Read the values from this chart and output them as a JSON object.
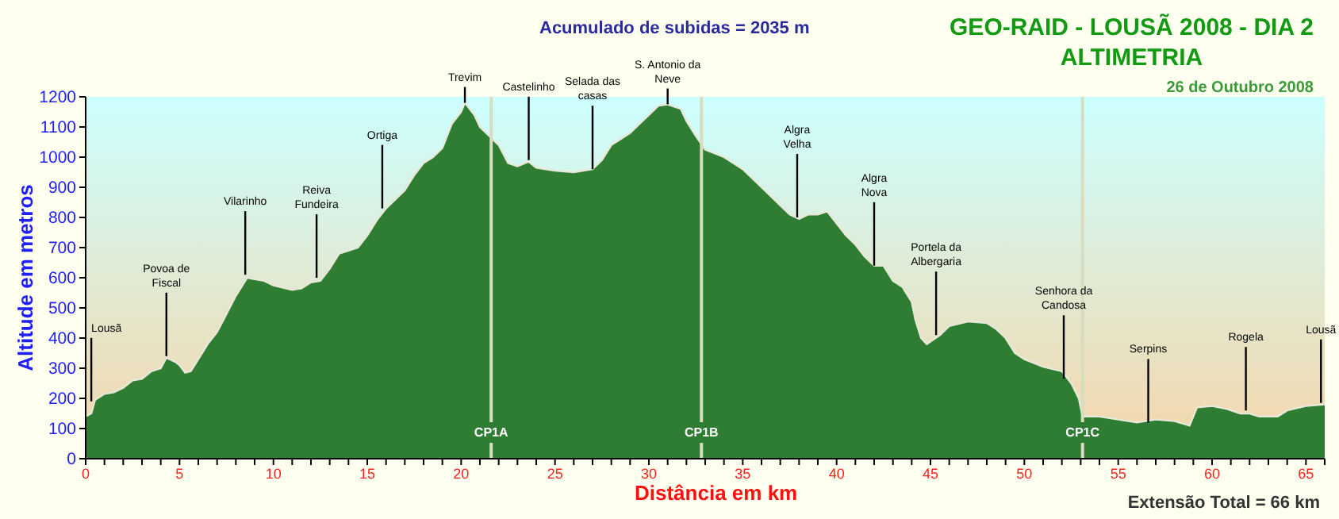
{
  "chart_data": {
    "type": "area",
    "title": "GEO-RAID - LOUSÃ 2008 - DIA 2\nALTIMETRIA",
    "subtitle": "26 de Outubro 2008",
    "xlabel": "Distância em km",
    "ylabel": "Altitude em metros",
    "x": [
      0,
      0.3,
      0.5,
      1,
      1.5,
      2,
      2.5,
      3,
      3.5,
      4,
      4.3,
      4.8,
      5,
      5.3,
      5.6,
      6,
      6.5,
      7,
      7.5,
      8,
      8.6,
      9,
      9.5,
      10,
      11,
      11.5,
      12,
      12.5,
      13,
      13.5,
      14,
      14.5,
      15,
      15.5,
      16,
      17,
      17.5,
      18,
      18.5,
      19,
      19.5,
      20,
      20.2,
      20.7,
      21,
      21.5,
      22,
      22.5,
      23,
      23.6,
      24,
      25,
      26,
      27,
      27.5,
      28,
      28.5,
      29,
      29.5,
      30,
      30.5,
      31,
      31.7,
      32,
      32.5,
      33,
      34,
      35,
      36,
      37,
      37.5,
      38,
      38.5,
      39,
      39.5,
      40,
      40.5,
      41,
      41.5,
      42,
      42.5,
      43,
      43.5,
      44,
      44.2,
      44.5,
      44.8,
      45.5,
      46,
      47,
      48,
      48.5,
      49,
      49.5,
      50,
      51,
      52,
      52.5,
      52.9,
      53.1,
      54,
      55,
      56,
      57,
      58,
      58.8,
      59.2,
      60,
      60.8,
      61.5,
      62,
      62.5,
      63.5,
      64,
      65,
      66
    ],
    "series": [
      {
        "color": "#2e7d32",
        "values": [
          140,
          150,
          195,
          215,
          220,
          235,
          260,
          265,
          290,
          300,
          335,
          320,
          310,
          285,
          290,
          330,
          380,
          420,
          480,
          540,
          600,
          595,
          590,
          575,
          560,
          565,
          585,
          590,
          630,
          680,
          690,
          700,
          740,
          790,
          830,
          890,
          940,
          980,
          1000,
          1030,
          1110,
          1150,
          1180,
          1140,
          1100,
          1070,
          1040,
          980,
          970,
          985,
          965,
          955,
          950,
          960,
          990,
          1040,
          1060,
          1080,
          1110,
          1140,
          1170,
          1175,
          1160,
          1120,
          1070,
          1025,
          1000,
          960,
          900,
          840,
          810,
          795,
          810,
          810,
          820,
          780,
          740,
          710,
          670,
          640,
          640,
          590,
          570,
          520,
          460,
          400,
          380,
          410,
          440,
          455,
          450,
          430,
          400,
          350,
          330,
          305,
          290,
          250,
          200,
          140,
          140,
          130,
          120,
          130,
          125,
          110,
          170,
          175,
          165,
          150,
          150,
          140,
          140,
          160,
          175,
          180
        ]
      }
    ],
    "xlim": [
      0,
      66
    ],
    "xticks": [
      0,
      {
        "value": 1,
        "label": null
      },
      {
        "value": 2,
        "label": null
      },
      {
        "value": 3,
        "label": null
      },
      {
        "value": 4,
        "label": null
      },
      5,
      {
        "value": 6,
        "label": null
      },
      {
        "value": 7,
        "label": null
      },
      {
        "value": 8,
        "label": null
      },
      {
        "value": 9,
        "label": null
      },
      10,
      {
        "value": 11,
        "label": null
      },
      {
        "value": 12,
        "label": null
      },
      {
        "value": 13,
        "label": null
      },
      {
        "value": 14,
        "label": null
      },
      15,
      {
        "value": 16,
        "label": null
      },
      {
        "value": 17,
        "label": null
      },
      {
        "value": 18,
        "label": null
      },
      {
        "value": 19,
        "label": null
      },
      20,
      {
        "value": 21,
        "label": null
      },
      {
        "value": 22,
        "label": null
      },
      {
        "value": 23,
        "label": null
      },
      {
        "value": 24,
        "label": null
      },
      25,
      {
        "value": 26,
        "label": null
      },
      {
        "value": 27,
        "label": null
      },
      {
        "value": 28,
        "label": null
      },
      {
        "value": 29,
        "label": null
      },
      30,
      {
        "value": 31,
        "label": null
      },
      {
        "value": 32,
        "label": null
      },
      {
        "value": 33,
        "label": null
      },
      {
        "value": 34,
        "label": null
      },
      35,
      {
        "value": 36,
        "label": null
      },
      {
        "value": 37,
        "label": null
      },
      {
        "value": 38,
        "label": null
      },
      {
        "value": 39,
        "label": null
      },
      40,
      {
        "value": 41,
        "label": null
      },
      {
        "value": 42,
        "label": null
      },
      {
        "value": 43,
        "label": null
      },
      {
        "value": 44,
        "label": null
      },
      45,
      {
        "value": 46,
        "label": null
      },
      {
        "value": 47,
        "label": null
      },
      {
        "value": 48,
        "label": null
      },
      {
        "value": 49,
        "label": null
      },
      50,
      {
        "value": 51,
        "label": null
      },
      {
        "value": 52,
        "label": null
      },
      {
        "value": 53,
        "label": null
      },
      {
        "value": 54,
        "label": null
      },
      55,
      {
        "value": 56,
        "label": null
      },
      {
        "value": 57,
        "label": null
      },
      {
        "value": 58,
        "label": null
      },
      {
        "value": 59,
        "label": null
      },
      60,
      {
        "value": 61,
        "label": null
      },
      {
        "value": 62,
        "label": null
      },
      {
        "value": 63,
        "label": null
      },
      {
        "value": 64,
        "label": null
      },
      65,
      {
        "value": 66,
        "label": null
      }
    ],
    "ylim": [
      0,
      1200
    ],
    "yticks": [
      0,
      100,
      200,
      300,
      400,
      500,
      600,
      700,
      800,
      900,
      1000,
      1100,
      1200
    ],
    "ref_lines": [
      {
        "axis": "x",
        "value": 21.6,
        "label": "CP1A",
        "color": "#d8dcc0"
      },
      {
        "axis": "x",
        "value": 32.8,
        "label": "CP1B",
        "color": "#d8dcc0"
      },
      {
        "axis": "x",
        "value": 53.1,
        "label": "CP1C",
        "color": "#d8dcc0"
      }
    ],
    "annotations": [
      "Acumulado de subidas = 2035 m",
      "Extensão Total = 66 km",
      {
        "text": "Lousã",
        "x": 0.3,
        "y": 190
      },
      {
        "text": "Povoa de\nFiscal",
        "x": 4.3,
        "y": 340
      },
      {
        "text": "Vilarinho",
        "x": 8.5,
        "y": 610
      },
      {
        "text": "Reiva\nFundeira",
        "x": 12.3,
        "y": 600
      },
      {
        "text": "Ortiga",
        "x": 15.8,
        "y": 830
      },
      {
        "text": "Trevim",
        "x": 20.2,
        "y": 1180
      },
      {
        "text": "Castelinho",
        "x": 23.6,
        "y": 990
      },
      {
        "text": "Selada das\ncasas",
        "x": 27,
        "y": 960
      },
      {
        "text": "S. Antonio da\nNeve",
        "x": 31,
        "y": 1175
      },
      {
        "text": "Algra\nVelha",
        "x": 37.9,
        "y": 800
      },
      {
        "text": "Algra\nNova",
        "x": 42,
        "y": 640
      },
      {
        "text": "Portela da\nAlbergaria",
        "x": 45.3,
        "y": 410
      },
      {
        "text": "Senhora da\nCandosa",
        "x": 52.1,
        "y": 265
      },
      {
        "text": "Serpins",
        "x": 56.6,
        "y": 120
      },
      {
        "text": "Rogela",
        "x": 61.8,
        "y": 160
      },
      {
        "text": "Lousã",
        "x": 65.8,
        "y": 185
      }
    ]
  }
}
